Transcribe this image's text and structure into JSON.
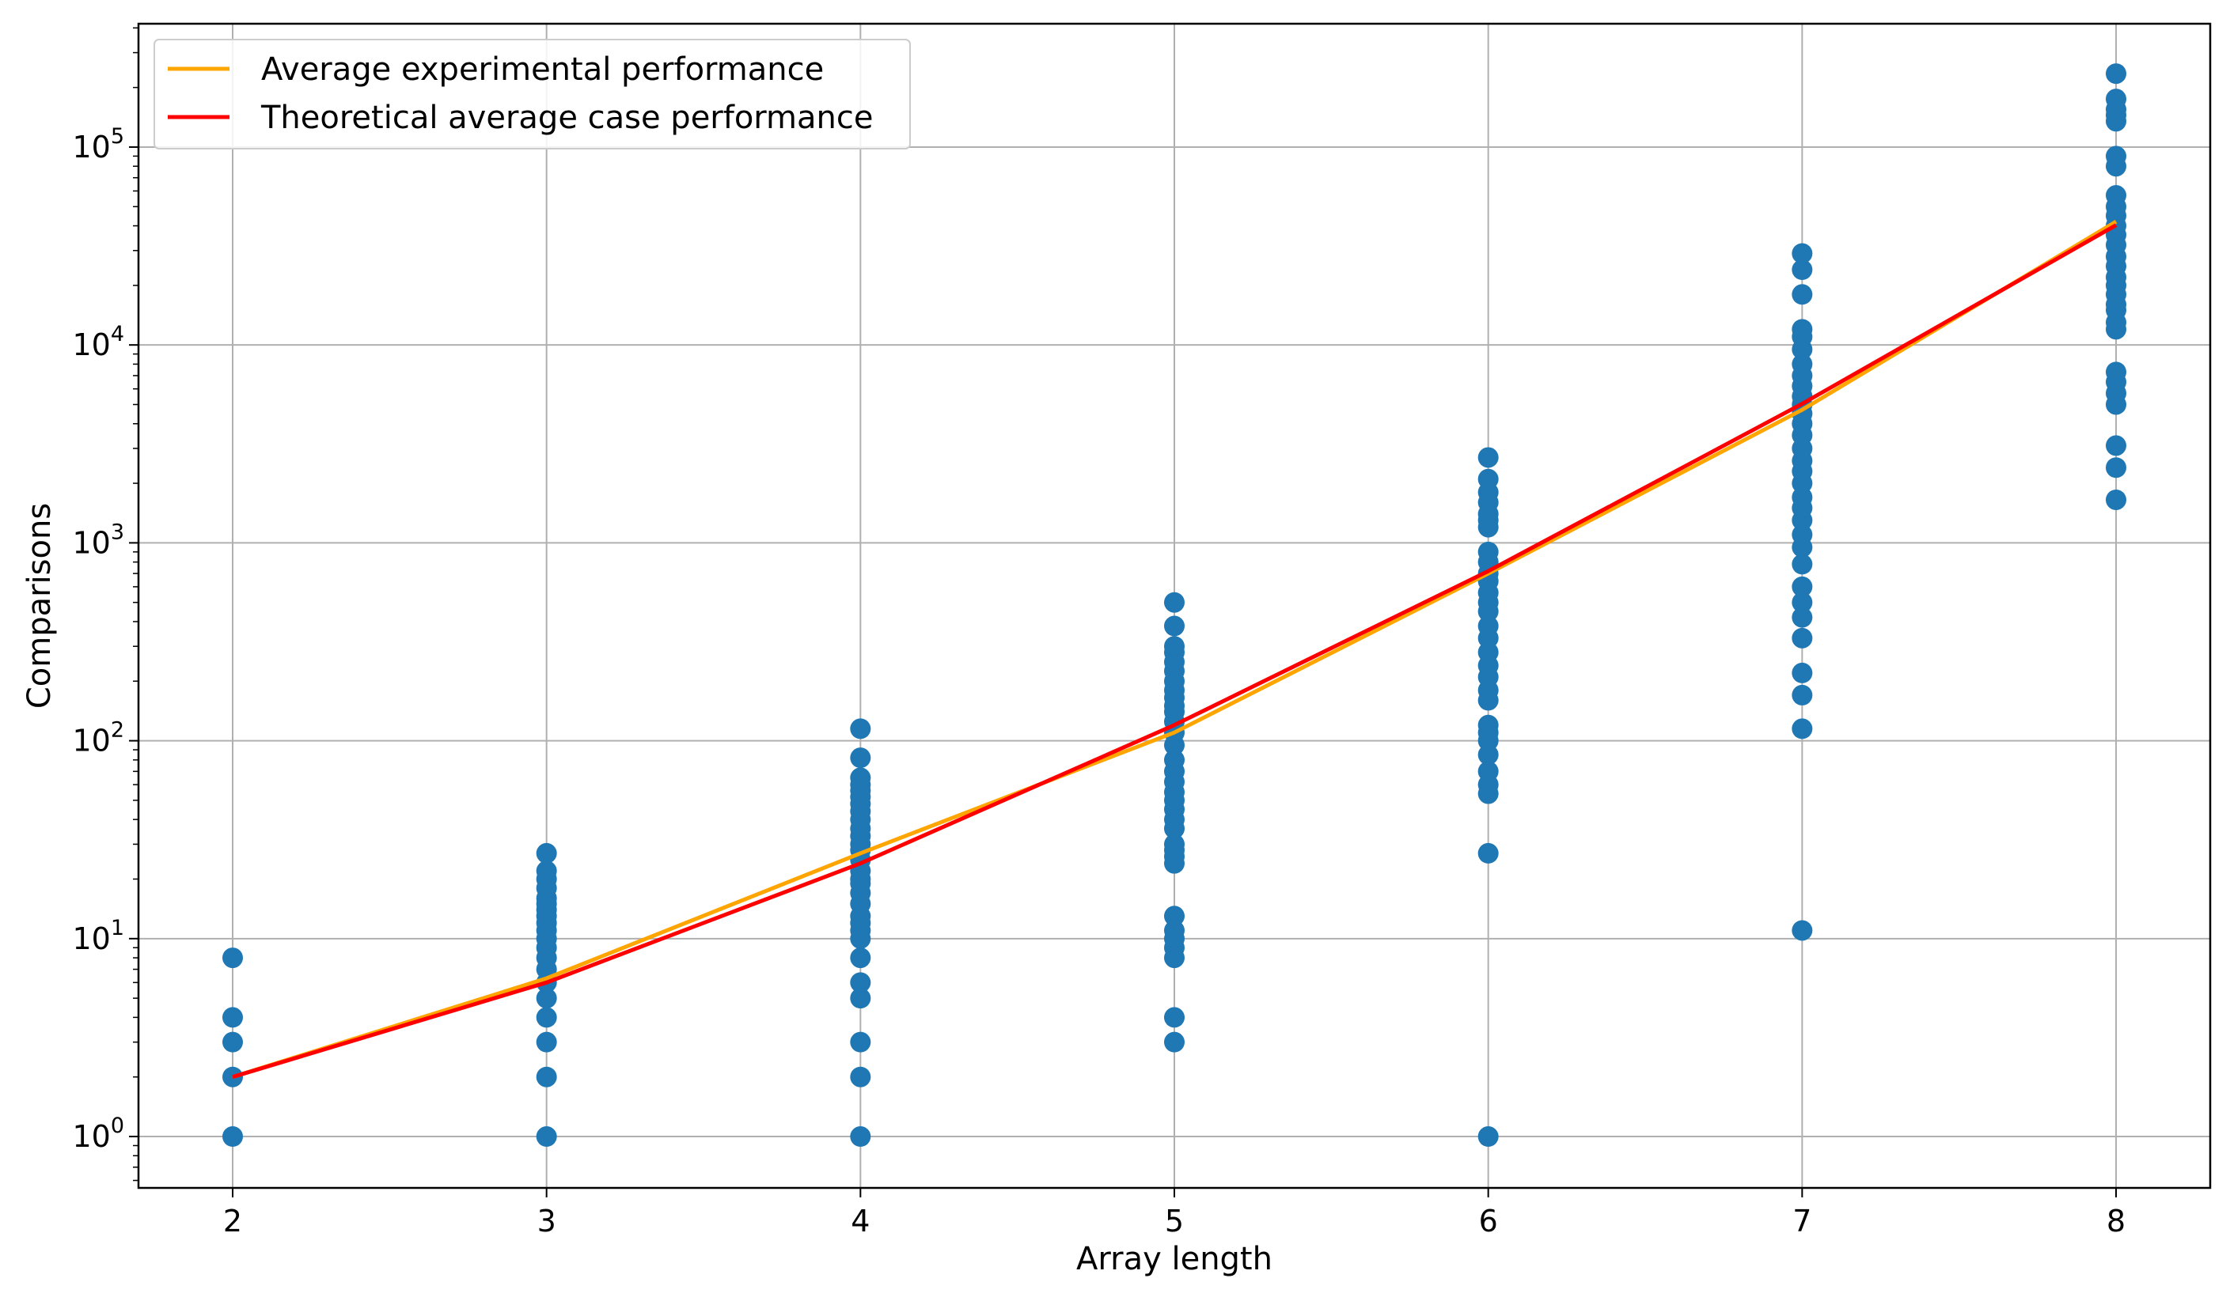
{
  "chart_data": {
    "type": "scatter",
    "title": "",
    "xlabel": "Array length",
    "ylabel": "Comparisons",
    "xlim": [
      1.7,
      8.3
    ],
    "ylim": [
      0.55,
      420000
    ],
    "y_scale": "log",
    "grid": true,
    "legend_position": "top-left",
    "x_ticks": [
      {
        "value": 2,
        "label": "2"
      },
      {
        "value": 3,
        "label": "3"
      },
      {
        "value": 4,
        "label": "4"
      },
      {
        "value": 5,
        "label": "5"
      },
      {
        "value": 6,
        "label": "6"
      },
      {
        "value": 7,
        "label": "7"
      },
      {
        "value": 8,
        "label": "8"
      }
    ],
    "y_ticks": [
      {
        "value": 1,
        "base": "10",
        "exp": "0"
      },
      {
        "value": 10,
        "base": "10",
        "exp": "1"
      },
      {
        "value": 100,
        "base": "10",
        "exp": "2"
      },
      {
        "value": 1000,
        "base": "10",
        "exp": "3"
      },
      {
        "value": 10000,
        "base": "10",
        "exp": "4"
      },
      {
        "value": 100000,
        "base": "10",
        "exp": "5"
      }
    ],
    "scatter": {
      "color": "#1f77b4",
      "points": [
        {
          "x": 2,
          "values": [
            1,
            2,
            3,
            4,
            8
          ]
        },
        {
          "x": 3,
          "values": [
            1,
            2,
            3,
            4,
            5,
            6,
            7,
            8,
            9,
            10,
            11,
            12,
            13,
            14,
            15,
            16,
            18,
            20,
            22,
            27
          ]
        },
        {
          "x": 4,
          "values": [
            1,
            2,
            3,
            5,
            6,
            8,
            10,
            11,
            12,
            13,
            15,
            17,
            19,
            20,
            22,
            25,
            28,
            30,
            33,
            36,
            40,
            44,
            48,
            52,
            56,
            60,
            65,
            82,
            115
          ]
        },
        {
          "x": 5,
          "values": [
            3,
            4,
            8,
            9,
            10,
            11,
            13,
            24,
            26,
            28,
            30,
            36,
            40,
            45,
            50,
            55,
            62,
            70,
            80,
            95,
            110,
            125,
            140,
            150,
            165,
            180,
            200,
            225,
            250,
            280,
            300,
            380,
            500
          ]
        },
        {
          "x": 6,
          "values": [
            1,
            27,
            54,
            60,
            70,
            85,
            100,
            110,
            120,
            160,
            180,
            210,
            240,
            280,
            330,
            380,
            450,
            500,
            560,
            640,
            700,
            800,
            900,
            1200,
            1300,
            1400,
            1600,
            1800,
            2100,
            2700
          ]
        },
        {
          "x": 7,
          "values": [
            11,
            115,
            170,
            220,
            330,
            420,
            500,
            600,
            780,
            950,
            1100,
            1300,
            1500,
            1700,
            2000,
            2300,
            2600,
            3000,
            3500,
            4000,
            4500,
            5000,
            5500,
            6200,
            7000,
            8000,
            9500,
            11000,
            12000,
            18000,
            24000,
            29000
          ]
        },
        {
          "x": 8,
          "values": [
            1650,
            2400,
            3100,
            5000,
            5700,
            6500,
            7300,
            12000,
            13000,
            15000,
            16000,
            18000,
            20000,
            22000,
            25000,
            28000,
            32000,
            36000,
            40000,
            45000,
            50000,
            57000,
            80000,
            90000,
            135000,
            145000,
            155000,
            175000,
            235000
          ]
        }
      ]
    },
    "series": [
      {
        "name": "Average experimental performance",
        "color": "#ffa500",
        "x": [
          2,
          3,
          4,
          5,
          6,
          7,
          8
        ],
        "values": [
          2,
          6.3,
          27,
          110,
          700,
          4700,
          42000
        ]
      },
      {
        "name": "Theoretical average case performance",
        "color": "#ff0000",
        "x": [
          2,
          3,
          4,
          5,
          6,
          7,
          8
        ],
        "values": [
          2,
          6,
          24,
          120,
          720,
          5040,
          40320
        ]
      }
    ]
  }
}
